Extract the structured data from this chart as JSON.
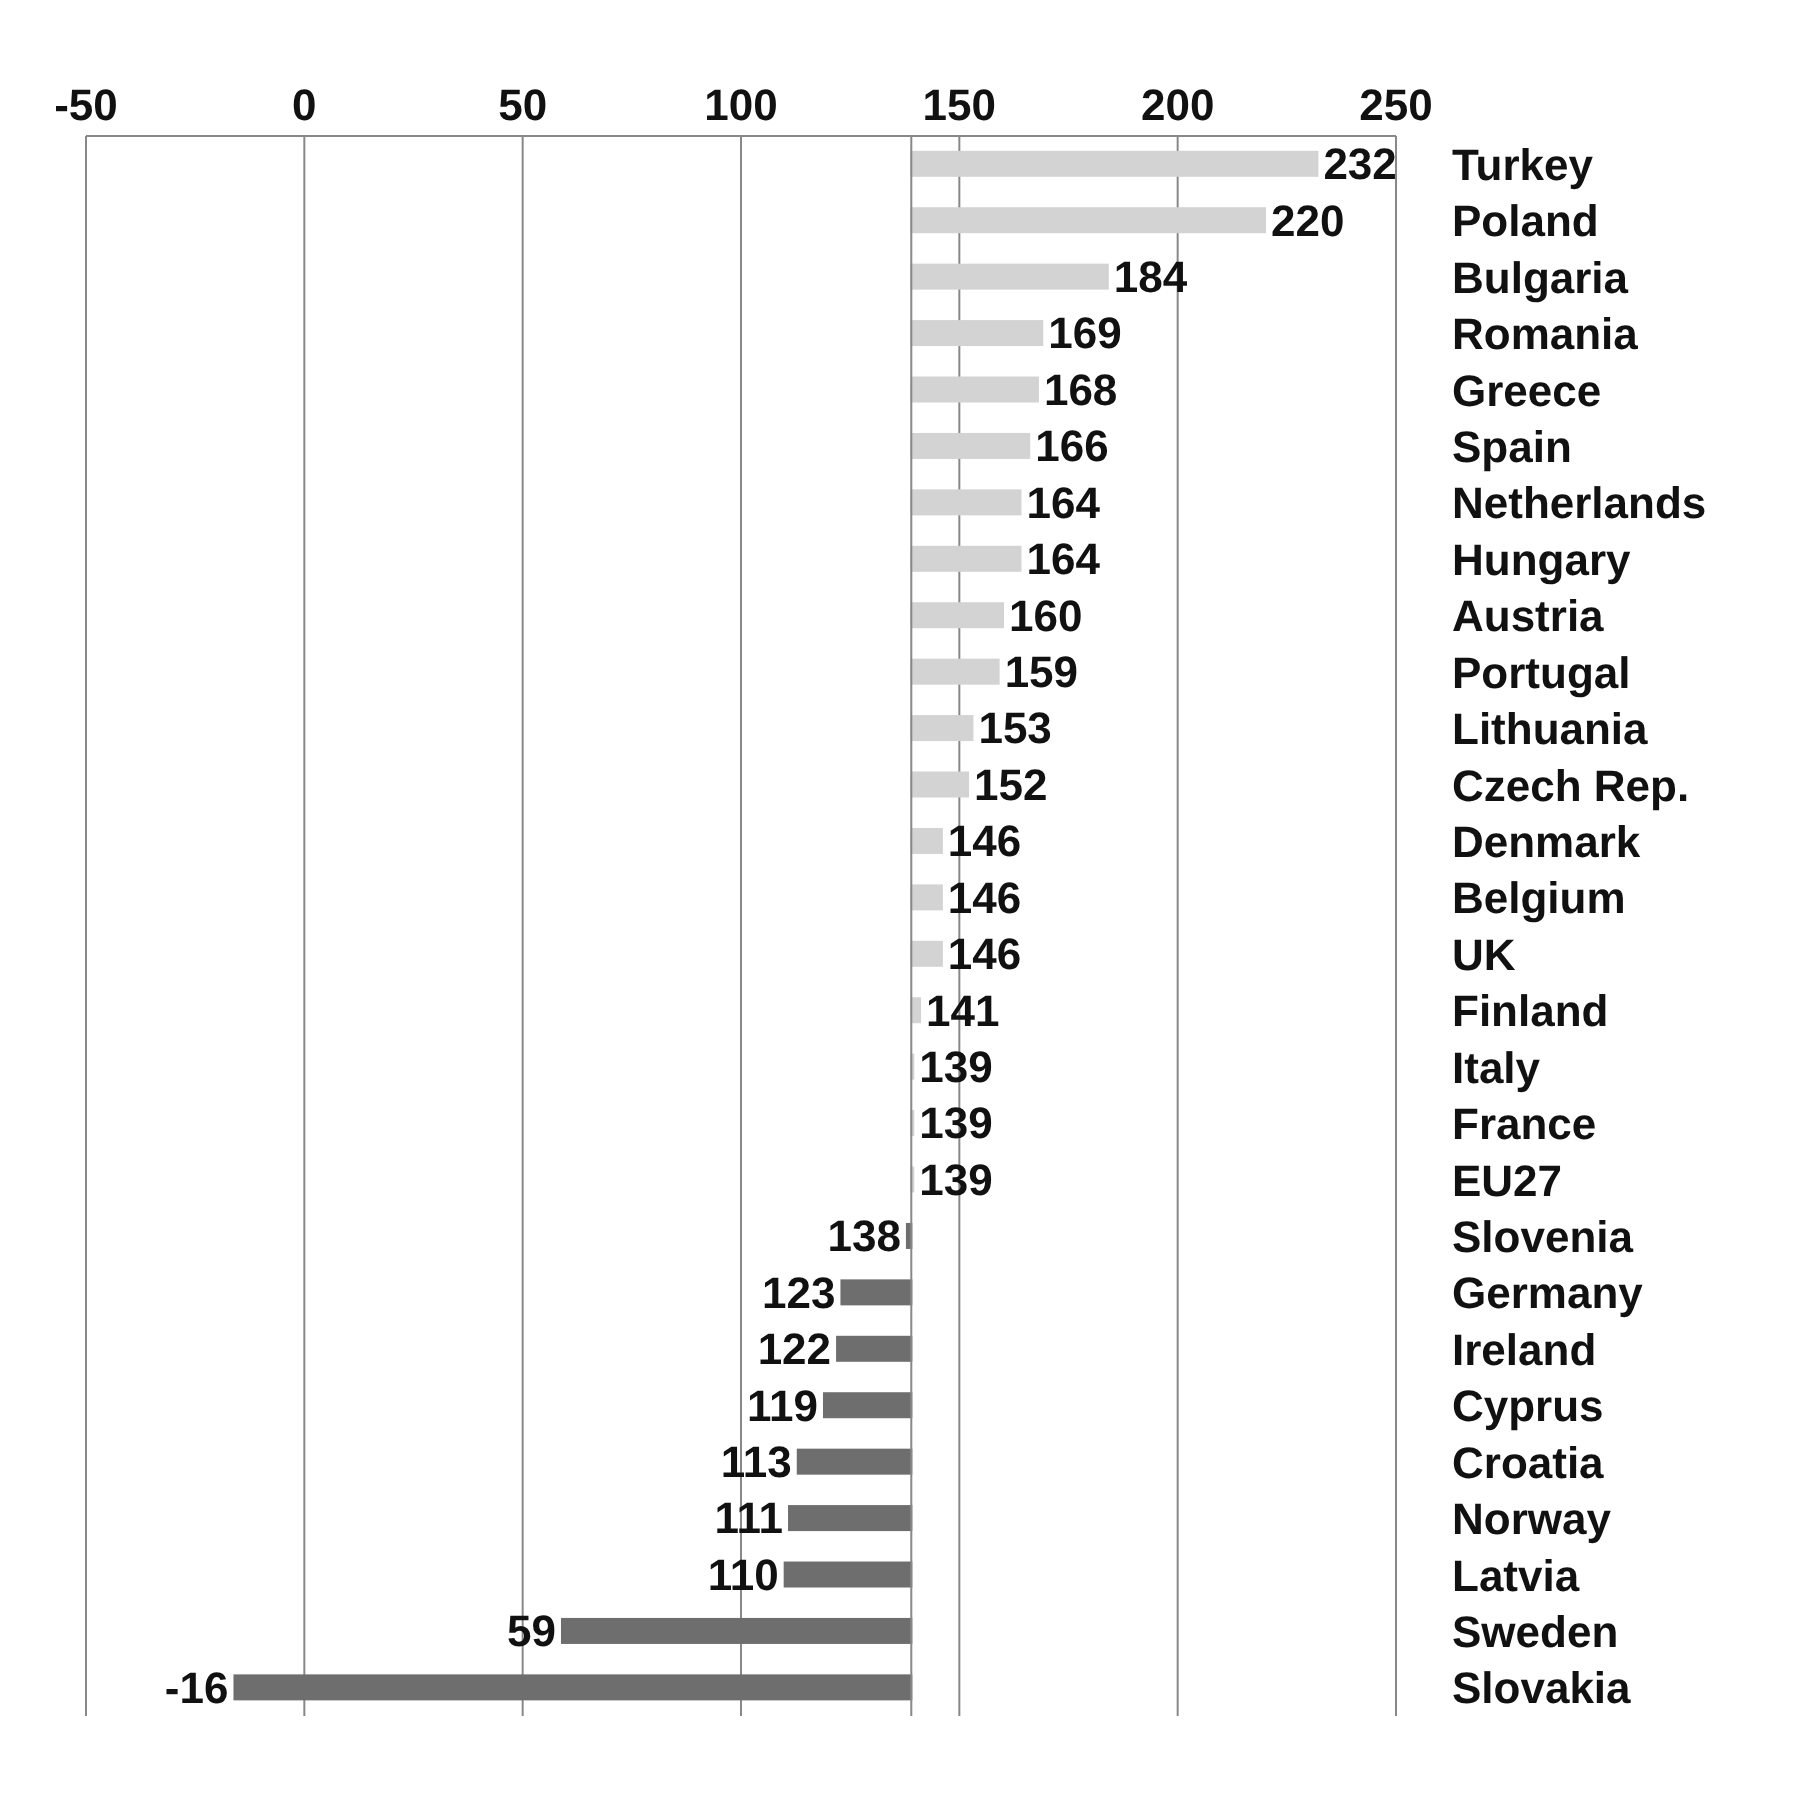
{
  "chart_data": {
    "type": "bar",
    "orientation": "horizontal",
    "categories": [
      "Turkey",
      "Poland",
      "Bulgaria",
      "Romania",
      "Greece",
      "Spain",
      "Netherlands",
      "Hungary",
      "Austria",
      "Portugal",
      "Lithuania",
      "Czech Rep.",
      "Denmark",
      "Belgium",
      "UK",
      "Finland",
      "Italy",
      "France",
      "EU27",
      "Slovenia",
      "Germany",
      "Ireland",
      "Cyprus",
      "Croatia",
      "Norway",
      "Latvia",
      "Sweden",
      "Slovakia"
    ],
    "base": [
      139,
      139,
      139,
      139,
      139,
      139,
      139,
      139,
      139,
      139,
      139,
      139,
      139,
      139,
      139,
      139,
      139,
      139,
      139,
      139,
      139,
      139,
      139,
      139,
      139,
      139,
      139,
      139
    ],
    "values": [
      93,
      81,
      45,
      30,
      29,
      27,
      25,
      25,
      21,
      20,
      14,
      13,
      7,
      7,
      7,
      2,
      0,
      0,
      0,
      -1,
      -16,
      -17,
      -20,
      -26,
      -28,
      -29,
      -80,
      -155
    ],
    "value_labels": [
      "232",
      "220",
      "184",
      "169",
      "168",
      "166",
      "164",
      "164",
      "160",
      "159",
      "153",
      "152",
      "146",
      "146",
      "146",
      "141",
      "139",
      "139",
      "139",
      "138",
      "123",
      "122",
      "119",
      "113",
      "111",
      "110",
      "59",
      "-16"
    ],
    "colors": [
      "#d3d3d3",
      "#d3d3d3",
      "#d3d3d3",
      "#d3d3d3",
      "#d3d3d3",
      "#d3d3d3",
      "#d3d3d3",
      "#d3d3d3",
      "#d3d3d3",
      "#d3d3d3",
      "#d3d3d3",
      "#d3d3d3",
      "#d3d3d3",
      "#d3d3d3",
      "#d3d3d3",
      "#d3d3d3",
      "#d3d3d3",
      "#d3d3d3",
      "#d3d3d3",
      "#6e6e6e",
      "#6e6e6e",
      "#6e6e6e",
      "#6e6e6e",
      "#6e6e6e",
      "#6e6e6e",
      "#6e6e6e",
      "#6e6e6e",
      "#6e6e6e"
    ],
    "ref_lines": [
      {
        "axis": "x",
        "value": 139,
        "color": "#888888"
      }
    ],
    "xlim": [
      -50,
      250
    ],
    "xticks": [
      -50,
      0,
      50,
      100,
      150,
      200,
      250
    ],
    "grid": "x"
  }
}
